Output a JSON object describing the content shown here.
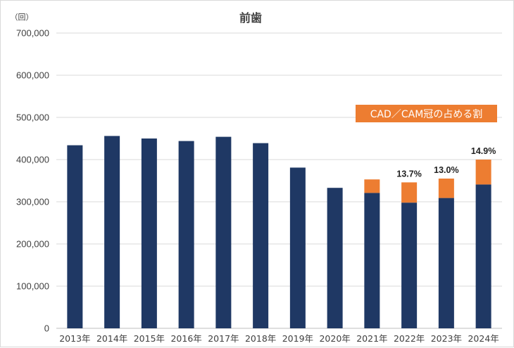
{
  "chart_data": {
    "type": "bar",
    "stacked": true,
    "title": "前歯",
    "ylabel": "（回）",
    "xlabel": "",
    "ylim": [
      0,
      700000
    ],
    "yticks": [
      0,
      100000,
      200000,
      300000,
      400000,
      500000,
      600000,
      700000
    ],
    "ytick_labels": [
      "0",
      "100,000",
      "200,000",
      "300,000",
      "400,000",
      "500,000",
      "600,000",
      "700,000"
    ],
    "grid": true,
    "categories": [
      "2013年",
      "2014年",
      "2015年",
      "2016年",
      "2017年",
      "2018年",
      "2019年",
      "2020年",
      "2021年",
      "2022年",
      "2023年",
      "2024年"
    ],
    "series": [
      {
        "color": "#1f3864",
        "values": [
          434000,
          456000,
          450000,
          444000,
          454000,
          439000,
          381000,
          333000,
          321000,
          298000,
          309000,
          341000
        ]
      },
      {
        "color": "#ed7d31",
        "values": [
          0,
          0,
          0,
          0,
          0,
          0,
          0,
          0,
          32000,
          48000,
          46000,
          59000
        ]
      }
    ],
    "data_labels": [
      "",
      "",
      "",
      "",
      "",
      "",
      "",
      "",
      "",
      "13.7%",
      "13.0%",
      "14.9%"
    ],
    "annotation": {
      "text": "CAD／CAM冠の占める割",
      "color": "#ed7d31"
    }
  }
}
